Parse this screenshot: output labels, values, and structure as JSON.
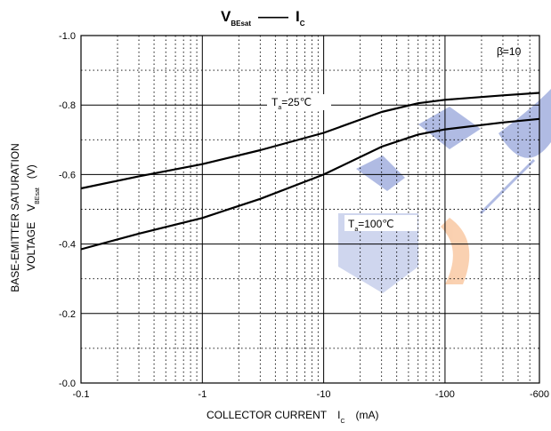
{
  "chart_data": {
    "type": "line",
    "title_main": "V",
    "title_sub": "BEsat",
    "title_dash": "——",
    "title_main2": "I",
    "title_sub2": "C",
    "xscale": "log",
    "x_reversed_sign": true,
    "xlim": [
      -0.1,
      -600
    ],
    "ylim": [
      0.0,
      -1.0
    ],
    "x_ticks": [
      "-0.1",
      "-1",
      "-10",
      "-100",
      "-600"
    ],
    "y_ticks": [
      "-1.0",
      "-0.8",
      "-0.6",
      "-0.4",
      "-0.2",
      "-0.0"
    ],
    "xlabel_main": "COLLECTOR CURRENT",
    "xlabel_sym": "I",
    "xlabel_sub": "C",
    "xlabel_unit": "(mA)",
    "ylabel_line1": "BASE-EMITTER SATURATION",
    "ylabel_line2_main": "VOLTAGE",
    "ylabel_sym": "V",
    "ylabel_sub": "BEsat",
    "ylabel_unit": "(V)",
    "condition": "β=10",
    "grid": true,
    "series": [
      {
        "name_main": "T",
        "name_sub": "a",
        "name_rest": "=25℃",
        "x": [
          -0.1,
          -0.3,
          -1,
          -3,
          -10,
          -30,
          -60,
          -100,
          -300,
          -600
        ],
        "y": [
          -0.56,
          -0.595,
          -0.63,
          -0.67,
          -0.72,
          -0.78,
          -0.805,
          -0.815,
          -0.828,
          -0.835
        ]
      },
      {
        "name_main": "T",
        "name_sub": "a",
        "name_rest": "=100℃",
        "x": [
          -0.1,
          -0.3,
          -1,
          -3,
          -10,
          -30,
          -60,
          -100,
          -300,
          -600
        ],
        "y": [
          -0.385,
          -0.43,
          -0.475,
          -0.53,
          -0.6,
          -0.68,
          -0.715,
          -0.73,
          -0.75,
          -0.76
        ]
      }
    ]
  }
}
